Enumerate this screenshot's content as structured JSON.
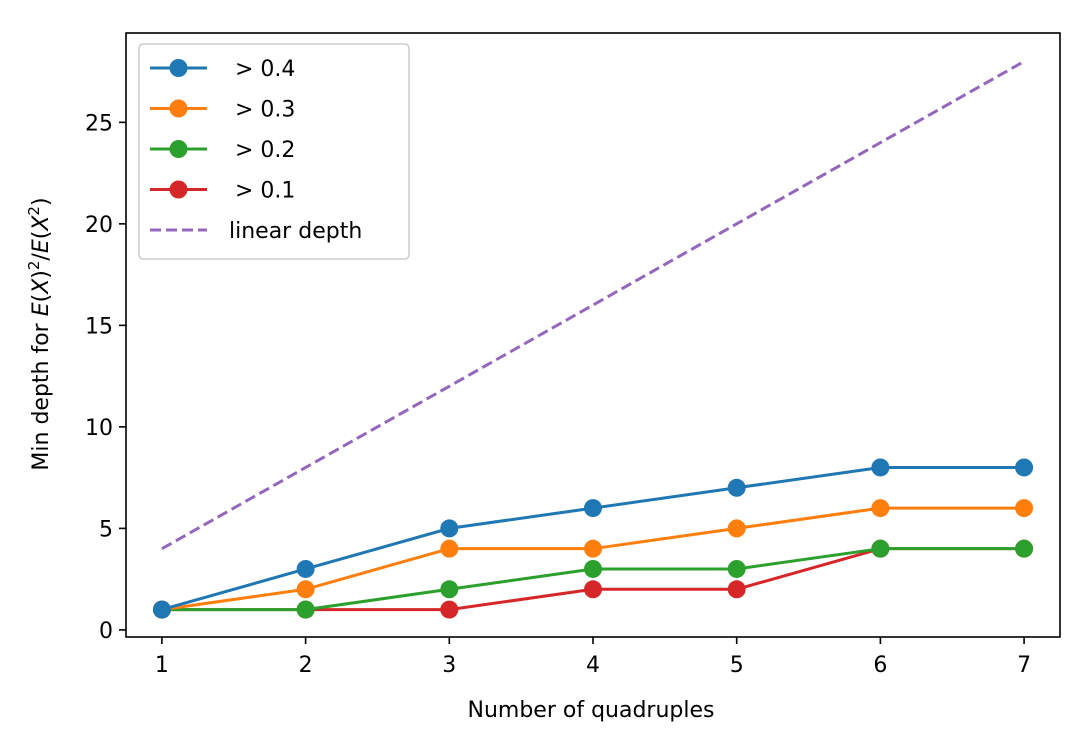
{
  "chart_data": {
    "type": "line",
    "title": "",
    "xlabel": "Number of quadruples",
    "ylabel": "Min depth for E(X)²/E(X²)",
    "ylabel_parts": [
      "Min depth for ",
      "E",
      "(",
      "X",
      ")",
      "2",
      "/",
      "E",
      "(",
      "X",
      "2",
      ")"
    ],
    "xlim": [
      0.75,
      7.25
    ],
    "ylim": [
      -0.35,
      29.4
    ],
    "x": [
      1,
      2,
      3,
      4,
      5,
      6,
      7
    ],
    "xticks": [
      "1",
      "2",
      "3",
      "4",
      "5",
      "6",
      "7"
    ],
    "yticks": [
      0,
      5,
      10,
      15,
      20,
      25
    ],
    "ytick_labels": [
      "0",
      "5",
      "10",
      "15",
      "20",
      "25"
    ],
    "grid": false,
    "legend_position": "top-left",
    "series": [
      {
        "name": "> 0.4",
        "label": "> 0.4",
        "color": "#1f77b4",
        "style": "solid-marker",
        "values": [
          1,
          3,
          5,
          6,
          7,
          8,
          8
        ]
      },
      {
        "name": "> 0.3",
        "label": "> 0.3",
        "color": "#ff7f0e",
        "style": "solid-marker",
        "values": [
          1,
          2,
          4,
          4,
          5,
          6,
          6
        ]
      },
      {
        "name": "> 0.2",
        "label": "> 0.2",
        "color": "#2ca02c",
        "style": "solid-marker",
        "values": [
          1,
          1,
          2,
          3,
          3,
          4,
          4
        ]
      },
      {
        "name": "> 0.1",
        "label": "> 0.1",
        "color": "#d62728",
        "style": "solid-marker",
        "values": [
          1,
          1,
          1,
          2,
          2,
          4,
          4
        ]
      },
      {
        "name": "linear depth",
        "label": "linear depth",
        "color": "#9467bd",
        "style": "dashed",
        "values": [
          4,
          8,
          12,
          16,
          20,
          24,
          28
        ]
      }
    ]
  }
}
